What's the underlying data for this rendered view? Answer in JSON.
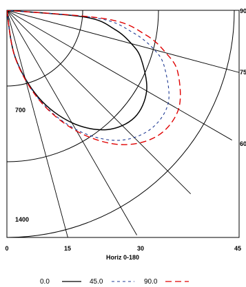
{
  "chart_data": {
    "type": "line",
    "subtype": "polar-luminous-intensity",
    "xlabel": "Horiz 0-180",
    "x_ticks": [
      "0",
      "15",
      "30",
      "45"
    ],
    "angle_labels": [
      "90",
      "75",
      "60"
    ],
    "radial_labels": [
      "700",
      "1400"
    ],
    "radial_rings": [
      700,
      1400,
      2100
    ],
    "angle_range": [
      0,
      90
    ],
    "legend_position": "bottom",
    "series": [
      {
        "name": "0.0",
        "style": "solid",
        "color": "#000000",
        "points": [
          [
            0,
            0
          ],
          [
            10,
            440
          ],
          [
            20,
            860
          ],
          [
            30,
            1200
          ],
          [
            40,
            1440
          ],
          [
            50,
            1540
          ],
          [
            60,
            1490
          ],
          [
            70,
            1320
          ],
          [
            75,
            1190
          ],
          [
            80,
            1010
          ],
          [
            85,
            730
          ],
          [
            90,
            0
          ]
        ]
      },
      {
        "name": "45.0",
        "style": "dashed",
        "color": "#1f3a93",
        "points": [
          [
            0,
            0
          ],
          [
            10,
            440
          ],
          [
            20,
            880
          ],
          [
            30,
            1270
          ],
          [
            40,
            1570
          ],
          [
            50,
            1720
          ],
          [
            60,
            1720
          ],
          [
            70,
            1550
          ],
          [
            75,
            1410
          ],
          [
            80,
            1180
          ],
          [
            85,
            840
          ],
          [
            90,
            0
          ]
        ]
      },
      {
        "name": "90.0",
        "style": "longdash",
        "color": "#e00000",
        "points": [
          [
            0,
            0
          ],
          [
            10,
            450
          ],
          [
            20,
            890
          ],
          [
            30,
            1290
          ],
          [
            40,
            1620
          ],
          [
            50,
            1810
          ],
          [
            60,
            1830
          ],
          [
            70,
            1680
          ],
          [
            75,
            1520
          ],
          [
            80,
            1300
          ],
          [
            85,
            930
          ],
          [
            90,
            0
          ]
        ]
      }
    ]
  }
}
